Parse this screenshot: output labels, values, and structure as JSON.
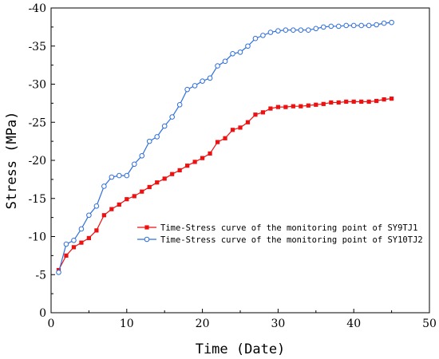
{
  "chart_data": {
    "type": "line",
    "title": "",
    "xlabel": "Time (Date)",
    "ylabel": "Stress (MPa)",
    "xlim": [
      0,
      50
    ],
    "ylim": [
      -40,
      0
    ],
    "y_axis_inverted": true,
    "x_ticks": [
      "0",
      "10",
      "20",
      "30",
      "40",
      "50"
    ],
    "y_ticks": [
      "-40",
      "-35",
      "-30",
      "-25",
      "-20",
      "-15",
      "-10",
      "-5",
      "0"
    ],
    "grid": false,
    "legend_position": "center-right",
    "series": [
      {
        "name": "Time-Stress curve of the monitoring point of SY9TJ1",
        "color": "#ee1111",
        "marker": "filled-square",
        "x": [
          1,
          2,
          3,
          4,
          5,
          6,
          7,
          8,
          9,
          10,
          11,
          12,
          13,
          14,
          15,
          16,
          17,
          18,
          19,
          20,
          21,
          22,
          23,
          24,
          25,
          26,
          27,
          28,
          29,
          30,
          31,
          32,
          33,
          34,
          35,
          36,
          37,
          38,
          39,
          40,
          41,
          42,
          43,
          44,
          45
        ],
        "y": [
          -5.6,
          -7.5,
          -8.6,
          -9.2,
          -9.8,
          -10.8,
          -12.8,
          -13.6,
          -14.2,
          -14.9,
          -15.3,
          -15.9,
          -16.5,
          -17.1,
          -17.6,
          -18.2,
          -18.7,
          -19.3,
          -19.8,
          -20.3,
          -20.9,
          -22.4,
          -22.9,
          -24.0,
          -24.3,
          -25.0,
          -26.0,
          -26.3,
          -26.8,
          -27.0,
          -27.0,
          -27.1,
          -27.1,
          -27.2,
          -27.3,
          -27.4,
          -27.6,
          -27.6,
          -27.7,
          -27.7,
          -27.7,
          -27.7,
          -27.8,
          -28.0,
          -28.1
        ]
      },
      {
        "name": "Time-Stress curve of the monitoring point of SY10TJ2",
        "color": "#2f6fdd",
        "marker": "hollow-circle",
        "x": [
          1,
          2,
          3,
          4,
          5,
          6,
          7,
          8,
          9,
          10,
          11,
          12,
          13,
          14,
          15,
          16,
          17,
          18,
          19,
          20,
          21,
          22,
          23,
          24,
          25,
          26,
          27,
          28,
          29,
          30,
          31,
          32,
          33,
          34,
          35,
          36,
          37,
          38,
          39,
          40,
          41,
          42,
          43,
          44,
          45
        ],
        "y": [
          -5.3,
          -9.0,
          -9.5,
          -11.0,
          -12.8,
          -14.0,
          -16.6,
          -17.8,
          -18.0,
          -18.0,
          -19.5,
          -20.6,
          -22.5,
          -23.1,
          -24.5,
          -25.7,
          -27.3,
          -29.3,
          -29.8,
          -30.4,
          -30.8,
          -32.4,
          -33.0,
          -34.0,
          -34.2,
          -35.0,
          -36.0,
          -36.4,
          -36.8,
          -37.0,
          -37.1,
          -37.1,
          -37.1,
          -37.1,
          -37.3,
          -37.5,
          -37.6,
          -37.6,
          -37.7,
          -37.7,
          -37.7,
          -37.7,
          -37.8,
          -38.0,
          -38.1
        ]
      }
    ]
  }
}
